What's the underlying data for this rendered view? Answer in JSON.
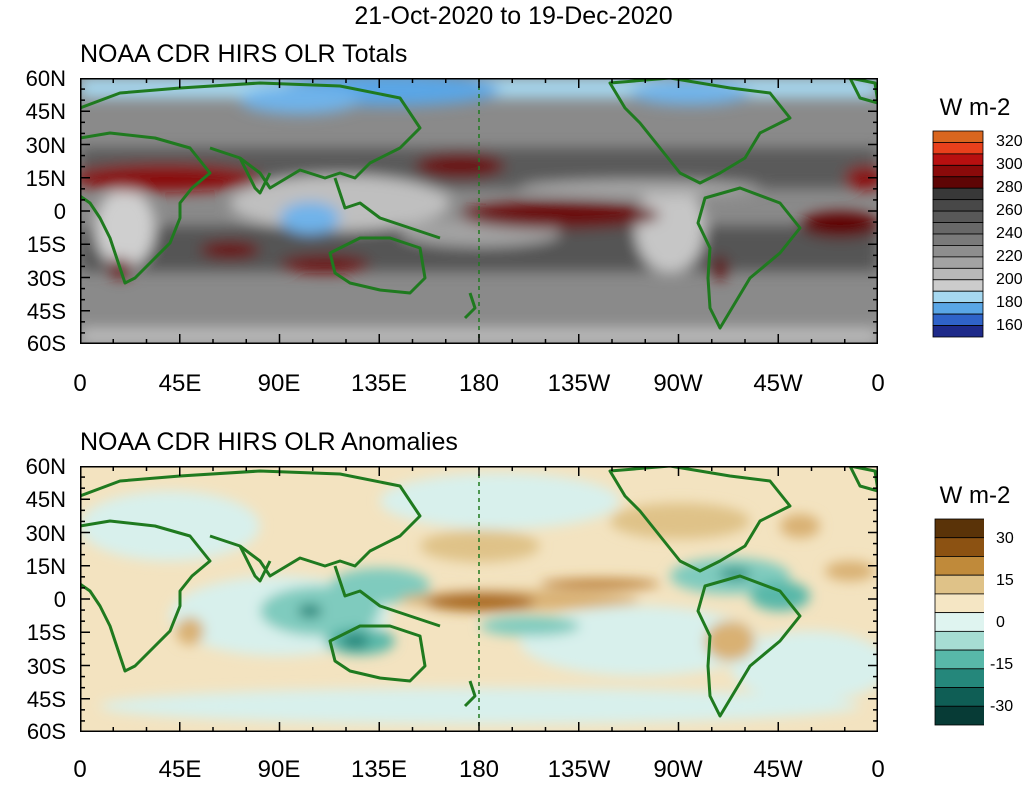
{
  "figure": {
    "title": "21-Oct-2020 to 19-Dec-2020"
  },
  "lat_labels": [
    "60N",
    "45N",
    "30N",
    "15N",
    "0",
    "15S",
    "30S",
    "45S",
    "60S"
  ],
  "lon_labels": [
    "0",
    "45E",
    "90E",
    "135E",
    "180",
    "135W",
    "90W",
    "45W",
    "0"
  ],
  "panels": [
    {
      "title": "NOAA CDR HIRS OLR Totals",
      "units": "W m-2",
      "colorbar": {
        "labels": [
          "320",
          "300",
          "280",
          "260",
          "240",
          "220",
          "200",
          "180",
          "160"
        ],
        "colors": [
          "#d9661f",
          "#e8401c",
          "#b81010",
          "#8a0a0a",
          "#5e0505",
          "#383838",
          "#484848",
          "#585858",
          "#686868",
          "#7a7a7a",
          "#8e8e8e",
          "#a3a3a3",
          "#b8b8b8",
          "#cccccc",
          "#a6d8f0",
          "#5aa6e6",
          "#2f63c9",
          "#1e2a8a"
        ]
      },
      "palette": {
        "ocean_base": "#8a8a8a",
        "tropics_band": "#5a5a5a",
        "cold_high_lat": "#6fb3ea",
        "cloudy_light": "#cfcfcf",
        "hot_red": "#6b0a0a",
        "hot_red_light": "#9c1414",
        "land_outline": "#1f7a1f"
      }
    },
    {
      "title": "NOAA CDR HIRS OLR Anomalies",
      "units": "W m-2",
      "colorbar": {
        "labels": [
          "30",
          "15",
          "0",
          "-15",
          "-30"
        ],
        "colors": [
          "#5a3308",
          "#8c5212",
          "#c08a3a",
          "#dfc288",
          "#f5e6c4",
          "#dff4f0",
          "#a6ddd3",
          "#58b8a9",
          "#25877b",
          "#0f5e55",
          "#073b36"
        ]
      },
      "palette": {
        "base": "#f3e3c0",
        "neutral_light": "#d8f0ec",
        "neg_mid": "#7fcbbe",
        "neg_strong": "#2f9385",
        "pos_mid": "#d9b173",
        "pos_strong": "#a8681f",
        "land_outline": "#1f7a1f"
      }
    }
  ]
}
